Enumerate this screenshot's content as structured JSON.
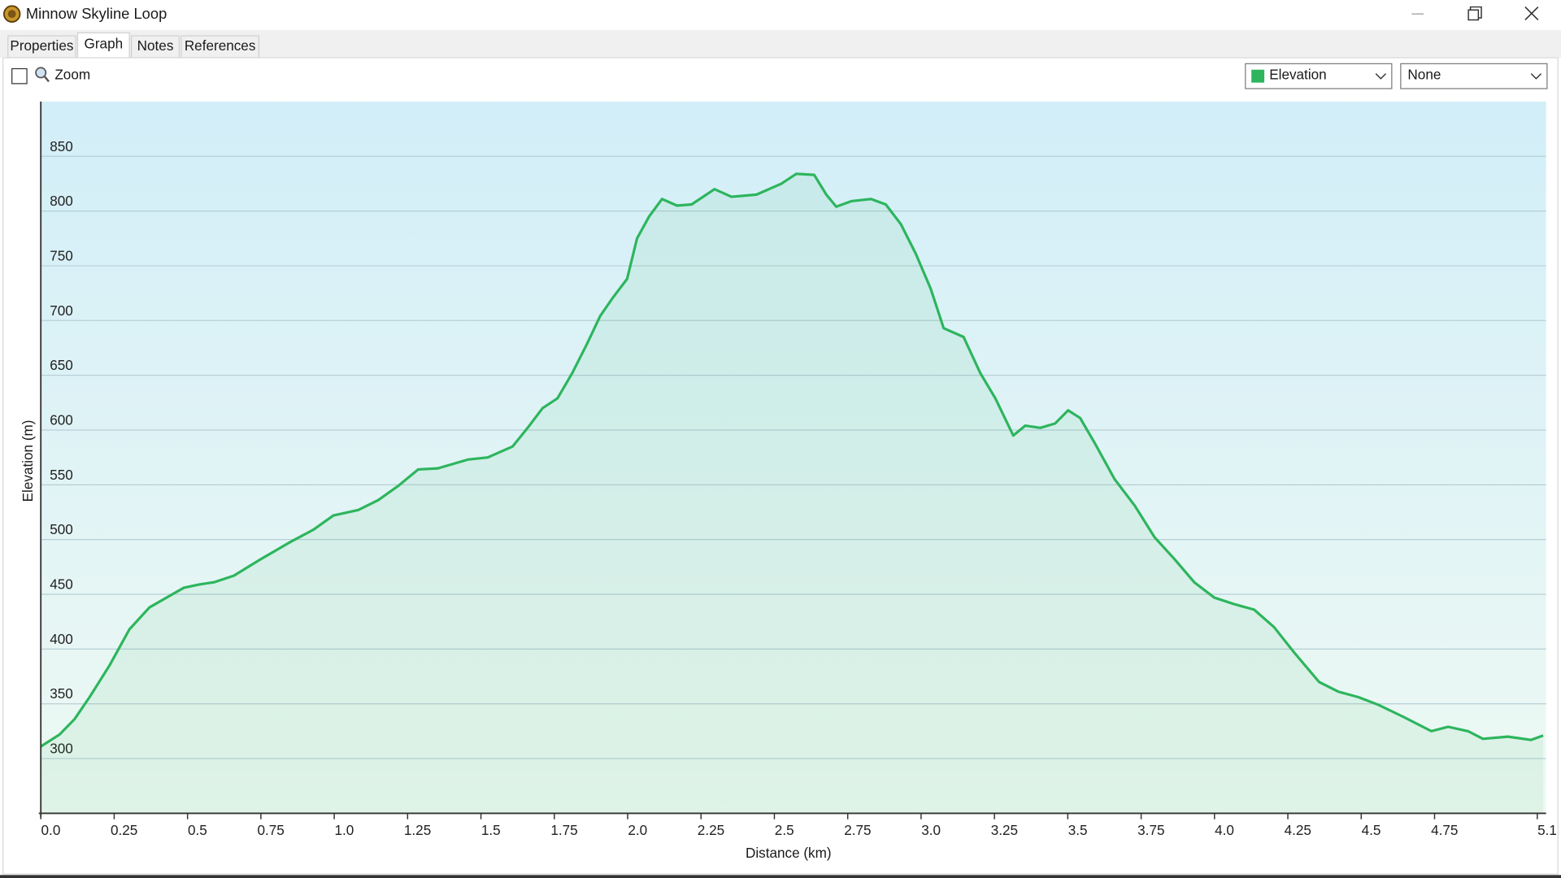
{
  "window": {
    "title": "Minnow Skyline Loop"
  },
  "tabs": [
    "Properties",
    "Graph",
    "Notes",
    "References"
  ],
  "toolbar": {
    "zoom_label": "Zoom",
    "second_select": "None"
  },
  "chart_data": {
    "type": "line",
    "x_label": "Distance  (km)",
    "y_label": "Elevation (m)",
    "x": [
      0,
      0.064,
      0.115,
      0.166,
      0.234,
      0.302,
      0.37,
      0.455,
      0.488,
      0.54,
      0.59,
      0.658,
      0.743,
      0.845,
      0.929,
      0.997,
      1.082,
      1.15,
      1.218,
      1.286,
      1.353,
      1.455,
      1.523,
      1.608,
      1.659,
      1.71,
      1.761,
      1.811,
      1.862,
      1.906,
      1.947,
      1.998,
      2.032,
      2.073,
      2.117,
      2.168,
      2.218,
      2.296,
      2.354,
      2.439,
      2.524,
      2.575,
      2.636,
      2.677,
      2.711,
      2.762,
      2.829,
      2.88,
      2.931,
      2.982,
      3.033,
      3.077,
      3.145,
      3.202,
      3.253,
      3.314,
      3.355,
      3.406,
      3.457,
      3.501,
      3.542,
      3.592,
      3.66,
      3.728,
      3.796,
      3.864,
      3.931,
      3.999,
      4.067,
      4.135,
      4.203,
      4.271,
      4.356,
      4.423,
      4.491,
      4.559,
      4.644,
      4.739,
      4.796,
      4.864,
      4.915,
      5.0,
      5.079,
      5.12
    ],
    "series": [
      {
        "name": "Elevation",
        "color": "#2db55d",
        "values": [
          311,
          322,
          336,
          356,
          385,
          418,
          438,
          451,
          456,
          459,
          461,
          467,
          481,
          497,
          509,
          522,
          527,
          536,
          549,
          564,
          565,
          573,
          575,
          585,
          602,
          620,
          629,
          652,
          679,
          704,
          720,
          738,
          775,
          795,
          811,
          805,
          806,
          820,
          813,
          815,
          825,
          834,
          833,
          815,
          804,
          809,
          811,
          806,
          788,
          761,
          729,
          693,
          685,
          652,
          629,
          595,
          604,
          602,
          606,
          618,
          611,
          588,
          555,
          531,
          502,
          482,
          461,
          447,
          441,
          436,
          420,
          397,
          370,
          361,
          356,
          349,
          338,
          325,
          329,
          325,
          318,
          320,
          317,
          321
        ]
      }
    ],
    "xlim": [
      0,
      5.13
    ],
    "ylim": [
      250,
      900
    ],
    "xticks": [
      {
        "value": 0,
        "label": "0.0"
      },
      0.25,
      0.5,
      0.75,
      {
        "value": 1,
        "label": "1.0"
      },
      1.25,
      1.5,
      1.75,
      {
        "value": 2,
        "label": "2.0"
      },
      2.25,
      2.5,
      2.75,
      {
        "value": 3,
        "label": "3.0"
      },
      3.25,
      3.5,
      3.75,
      {
        "value": 4,
        "label": "4.0"
      },
      4.25,
      4.5,
      4.75,
      5.1
    ],
    "yticks": [
      300,
      350,
      400,
      450,
      500,
      550,
      600,
      650,
      700,
      750,
      800,
      850
    ],
    "grid": true
  }
}
